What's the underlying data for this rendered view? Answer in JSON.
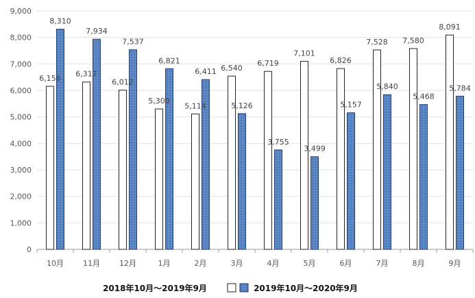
{
  "chart_data": {
    "type": "bar",
    "categories": [
      "10月",
      "11月",
      "12月",
      "1月",
      "2月",
      "3月",
      "4月",
      "5月",
      "6月",
      "7月",
      "8月",
      "9月"
    ],
    "series": [
      {
        "name": "2018年10月～2019年9月",
        "values": [
          6156,
          6317,
          6012,
          5300,
          5114,
          6540,
          6719,
          7101,
          6826,
          7528,
          7580,
          8091
        ],
        "labels": [
          "6,156",
          "6,317",
          "6,012",
          "5,300",
          "5,114",
          "6,540",
          "6,719",
          "7,101",
          "6,826",
          "7,528",
          "7,580",
          "8,091"
        ],
        "color": "#ffffff",
        "stroke": "#222222"
      },
      {
        "name": "2019年10月～2020年9月",
        "values": [
          8310,
          7934,
          7537,
          6821,
          6411,
          5126,
          3755,
          3499,
          5157,
          5840,
          5468,
          5784
        ],
        "labels": [
          "8,310",
          "7,934",
          "7,537",
          "6,821",
          "6,411",
          "5,126",
          "3,755",
          "3,499",
          "5,157",
          "5,840",
          "5,468",
          "5,784"
        ],
        "color": "#5b86c6",
        "stroke": "#1f3f77"
      }
    ],
    "ylim": [
      0,
      9000
    ],
    "yticks": [
      0,
      1000,
      2000,
      3000,
      4000,
      5000,
      6000,
      7000,
      8000,
      9000
    ],
    "ytick_labels": [
      "0",
      "1,000",
      "2,000",
      "3,000",
      "4,000",
      "5,000",
      "6,000",
      "7,000",
      "8,000",
      "9,000"
    ],
    "grid": true,
    "legend_position": "bottom-center",
    "title": "",
    "xlabel": "",
    "ylabel": ""
  }
}
